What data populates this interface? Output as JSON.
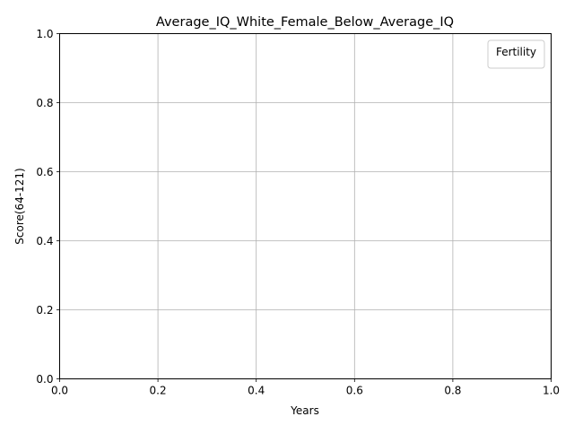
{
  "chart_data": {
    "type": "line",
    "title": "Average_IQ_White_Female_Below_Average_IQ",
    "xlabel": "Years",
    "ylabel": "Score(64-121)",
    "xlim": [
      0.0,
      1.0
    ],
    "ylim": [
      0.0,
      1.0
    ],
    "xticks": [
      "0.0",
      "0.2",
      "0.4",
      "0.6",
      "0.8",
      "1.0"
    ],
    "yticks": [
      "0.0",
      "0.2",
      "0.4",
      "0.6",
      "0.8",
      "1.0"
    ],
    "grid": true,
    "legend": {
      "title": "Fertility",
      "placement": "top-right",
      "entries": []
    },
    "series": []
  },
  "colors": {
    "grid": "#b0b0b0",
    "axes": "#000000",
    "legend_border": "#cccccc"
  }
}
